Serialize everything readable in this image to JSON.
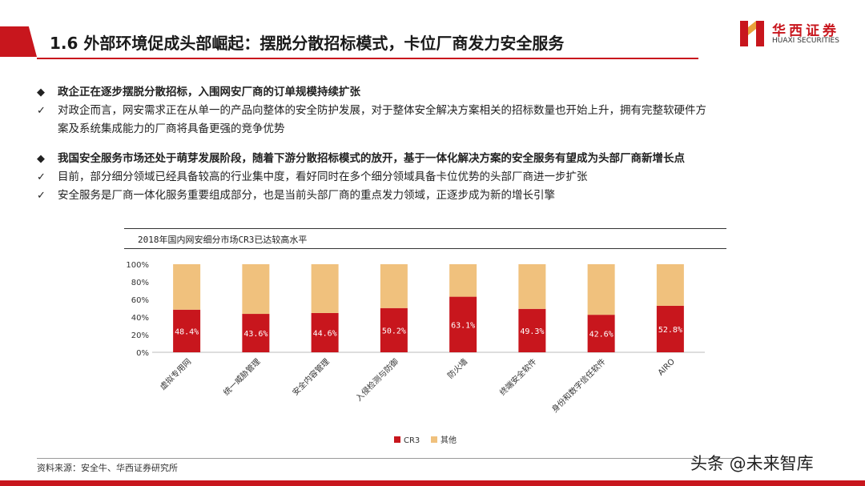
{
  "slide": {
    "title": "1.6 外部环境促成头部崛起：摆脱分散招标模式，卡位厂商发力安全服务"
  },
  "logo": {
    "cn": "华西证券",
    "en": "HUAXI SECURITIES"
  },
  "bullets": {
    "diamond_mark": "◆",
    "check_mark": "✓",
    "b1_heading": "政企正在逐步摆脱分散招标，入围网安厂商的订单规模持续扩张",
    "b1_line1": "对政企而言，网安需求正在从单一的产品向整体的安全防护发展，对于整体安全解决方案相关的招标数量也开始上升，拥有完整软硬件方",
    "b1_line2": "案及系统集成能力的厂商将具备更强的竞争优势",
    "b2_heading": "我国安全服务市场还处于萌芽发展阶段，随着下游分散招标模式的放开，基于一体化解决方案的安全服务有望成为头部厂商新增长点",
    "b2_line1": "目前，部分细分领域已经具备较高的行业集中度，看好同时在多个细分领域具备卡位优势的头部厂商进一步扩张",
    "b2_line2": "安全服务是厂商一体化服务重要组成部分，也是当前头部厂商的重点发力领域，正逐步成为新的增长引擎"
  },
  "chart_data": {
    "type": "bar",
    "stacked": true,
    "title": "2018年国内网安细分市场CR3已达较高水平",
    "categories": [
      "虚拟专用网",
      "统一威胁管理",
      "安全内容管理",
      "入侵检测与防御",
      "防火墙",
      "终端安全软件",
      "身份和数字信任软件",
      "AIRO"
    ],
    "series": [
      {
        "name": "CR3",
        "values": [
          48.4,
          43.6,
          44.6,
          50.2,
          63.1,
          49.3,
          42.6,
          52.8
        ],
        "color": "#c8161d"
      },
      {
        "name": "其他",
        "values": [
          51.6,
          56.4,
          55.4,
          49.8,
          36.9,
          50.7,
          57.4,
          47.2
        ],
        "color": "#f0c17d"
      }
    ],
    "data_labels": [
      "48.4%",
      "43.6%",
      "44.6%",
      "50.2%",
      "63.1%",
      "49.3%",
      "42.6%",
      "52.8%"
    ],
    "yticks": [
      "0%",
      "20%",
      "40%",
      "60%",
      "80%",
      "100%"
    ],
    "ylim": [
      0,
      100
    ],
    "grid": false,
    "legend": "bottom-center"
  },
  "footer": {
    "source": "资料来源：安全牛、华西证券研究所",
    "watermark": "头条 @未来智库"
  }
}
